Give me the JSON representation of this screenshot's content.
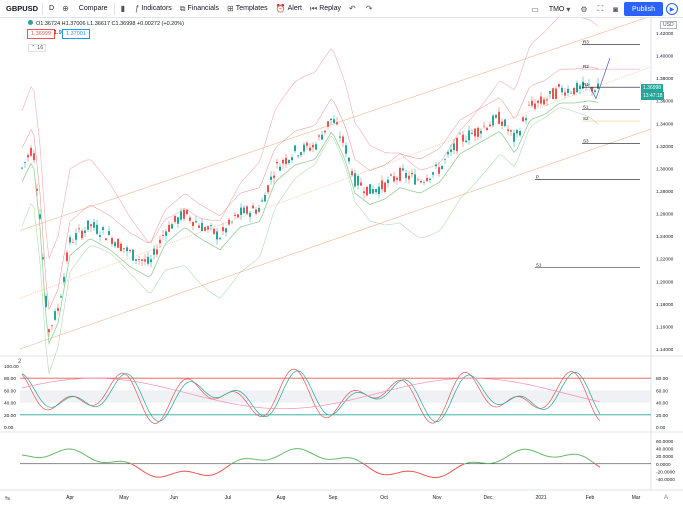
{
  "toolbar": {
    "symbol": "GBPUSD",
    "interval": "D",
    "compare": "Compare",
    "indicators": "Indicators",
    "financials": "Financials",
    "templates": "Templates",
    "alert": "Alert",
    "replay": "Replay",
    "layout_name": "TMO",
    "publish": "Publish",
    "icons": [
      "plus-icon",
      "candles-icon",
      "indicators-icon",
      "financials-icon",
      "templates-icon",
      "alert-icon",
      "replay-icon",
      "undo-icon",
      "redo-icon",
      "layout-icon",
      "settings-icon",
      "fullscreen-icon",
      "camera-icon",
      "play-icon"
    ]
  },
  "legend": {
    "ohlc": "O1.36724  H1.37006  L1.36617  C1.36998  +0.00272 (+0.20%)",
    "sell_price": "1.36999",
    "spread": "1.9",
    "buy_price": "1.37001",
    "collapse": "16"
  },
  "price_axis": {
    "currency": "USD",
    "ticks": [
      "1.42000",
      "1.40000",
      "1.38000",
      "1.36000",
      "1.34000",
      "1.32000",
      "1.30000",
      "1.28000",
      "1.26000",
      "1.24000",
      "1.22000",
      "1.20000",
      "1.18000",
      "1.16000",
      "1.14000"
    ],
    "last_price": "1.36998",
    "countdown": "13:47:18"
  },
  "pivots": [
    "R3",
    "R2",
    "R1",
    "S1",
    "S2",
    "S3",
    "P",
    "S1"
  ],
  "osc_axis": {
    "ticks": [
      "100.00",
      "80.00",
      "60.00",
      "40.00",
      "20.00",
      "0.00"
    ]
  },
  "osc_right": {
    "ticks": [
      "80.00",
      "60.00",
      "40.00",
      "20.00",
      "0.00"
    ]
  },
  "mom_axis": {
    "ticks": [
      "60.0000",
      "40.0000",
      "20.0000",
      "0.0000",
      "-20.0000",
      "-40.0000"
    ]
  },
  "time_axis": {
    "ticks": [
      "Apr",
      "May",
      "Jun",
      "Jul",
      "Aug",
      "Sep",
      "Oct",
      "Nov",
      "Dec",
      "2021",
      "Feb",
      "Mar"
    ]
  },
  "osc_label": "2",
  "colors": {
    "up": "#26a69a",
    "down": "#ef5350",
    "accent": "#2962ff"
  }
}
